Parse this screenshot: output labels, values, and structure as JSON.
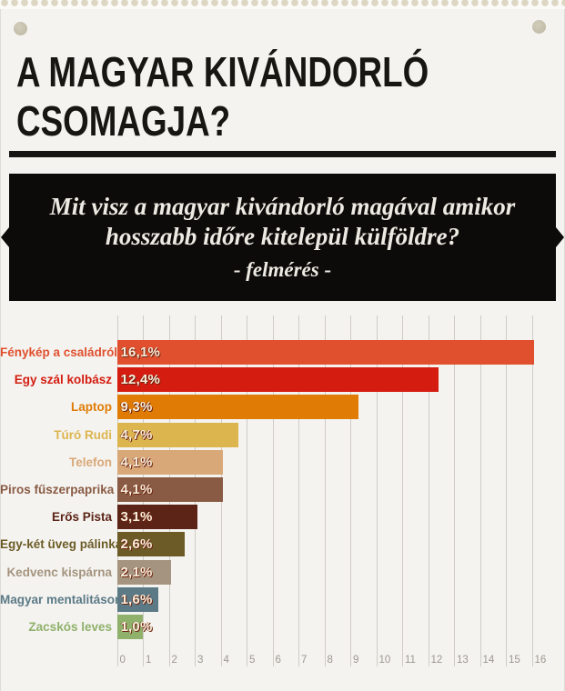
{
  "header": {
    "title_line1": "A MAGYAR KIVÁNDORLÓ",
    "title_line2": "CSOMAGJA?"
  },
  "banner": {
    "question_line1": "Mit visz a magyar kivándorló magával amikor",
    "question_line2": "hosszabb időre kitelepül külföldre?",
    "subtitle": "- felmérés -"
  },
  "colors": {
    "page_background": "#f4f3f0",
    "banner_background": "#0d0b09",
    "banner_text": "#edeae3",
    "gridline": "#cfccc5",
    "tick_label": "#9b988f",
    "value_label": "#f8eedc"
  },
  "chart_data": {
    "type": "bar",
    "orientation": "horizontal",
    "title": "",
    "xlabel": "",
    "ylabel": "",
    "xlim": [
      0,
      16.75
    ],
    "grid": true,
    "legend": false,
    "categories": [
      "Fénykép a családról",
      "Egy szál kolbász",
      "Laptop",
      "Túró Rudi",
      "Telefon",
      "Piros fűszerpaprika",
      "Erős Pista",
      "Egy-két üveg pálinka",
      "Kedvenc kispárna",
      "Magyar mentalitásom",
      "Zacskós leves"
    ],
    "values": [
      16.1,
      12.4,
      9.3,
      4.7,
      4.1,
      4.1,
      3.1,
      2.6,
      2.1,
      1.6,
      1.0
    ],
    "value_labels": [
      "16,1%",
      "12,4%",
      "9,3%",
      "4,7%",
      "4,1%",
      "4,1%",
      "3,1%",
      "2,6%",
      "2,1%",
      "1,6%",
      "1,0%"
    ],
    "bar_colors": [
      "#e0502e",
      "#d41d10",
      "#e07c05",
      "#ddb54e",
      "#d9a878",
      "#8a5b44",
      "#5c2416",
      "#6c5b26",
      "#a5947f",
      "#5b7a86",
      "#8fb16b"
    ],
    "x_ticks": [
      "0",
      "1",
      "2",
      "3",
      "4",
      "5",
      "6",
      "7",
      "8",
      "9",
      "10",
      "11",
      "12",
      "13",
      "14",
      "15",
      "16"
    ]
  }
}
